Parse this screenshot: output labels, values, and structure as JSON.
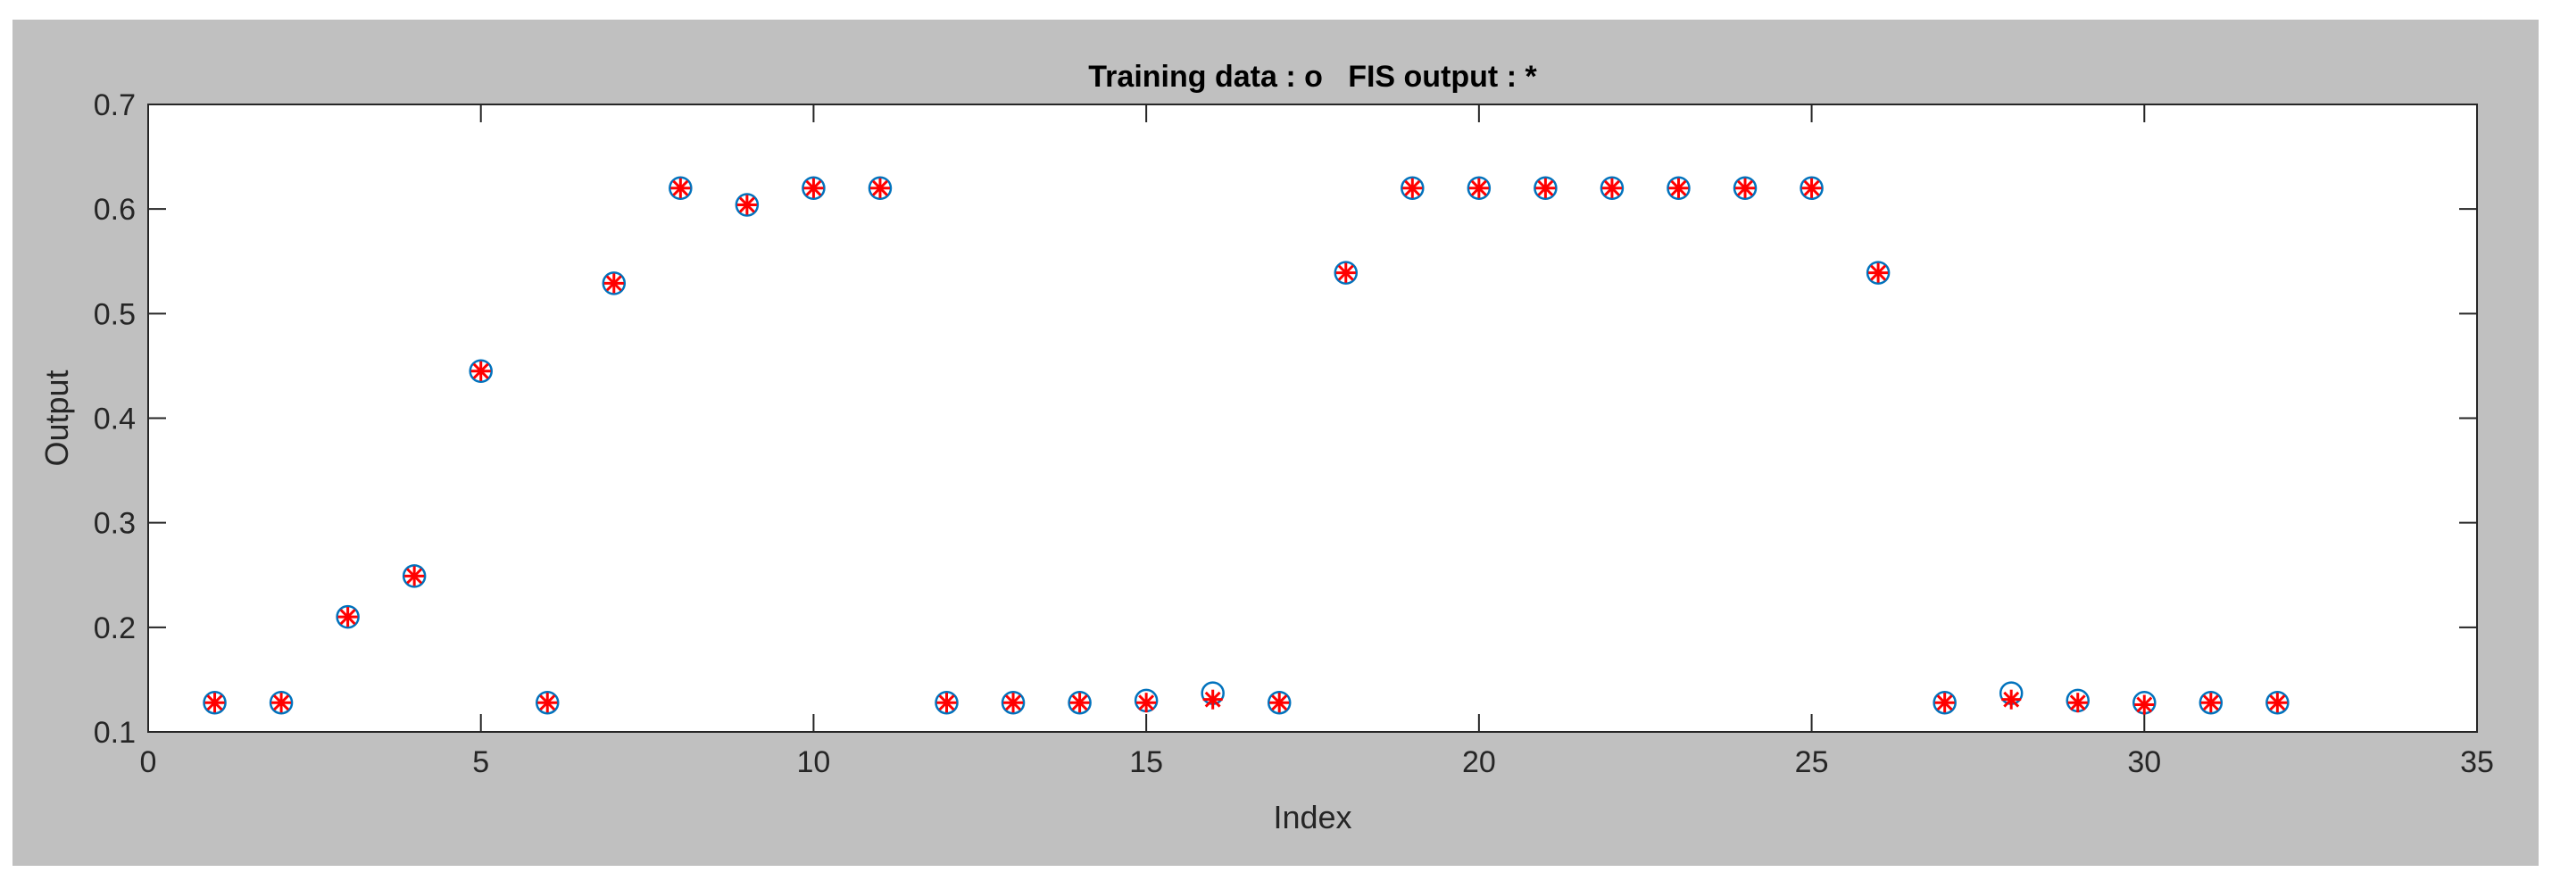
{
  "chart_data": {
    "type": "scatter",
    "title": "Training data : o   FIS output : *",
    "xlabel": "Index",
    "ylabel": "Output",
    "xlim": [
      0,
      35
    ],
    "ylim": [
      0.1,
      0.7
    ],
    "xticks": [
      0,
      5,
      10,
      15,
      20,
      25,
      30,
      35
    ],
    "yticks": [
      0.1,
      0.2,
      0.3,
      0.4,
      0.5,
      0.6,
      0.7
    ],
    "xtick_labels": [
      "0",
      "5",
      "10",
      "15",
      "20",
      "25",
      "30",
      "35"
    ],
    "ytick_labels": [
      "0.1",
      "0.2",
      "0.3",
      "0.4",
      "0.5",
      "0.6",
      "0.7"
    ],
    "grid": false,
    "series": [
      {
        "marker": "o",
        "color": "#0072bd",
        "x": [
          1,
          2,
          3,
          4,
          5,
          6,
          7,
          8,
          9,
          10,
          11,
          12,
          13,
          14,
          15,
          16,
          17,
          18,
          19,
          20,
          21,
          22,
          23,
          24,
          25,
          26,
          27,
          28,
          29,
          30,
          31,
          32
        ],
        "y": [
          0.128,
          0.128,
          0.21,
          0.249,
          0.445,
          0.128,
          0.529,
          0.62,
          0.604,
          0.62,
          0.62,
          0.128,
          0.128,
          0.128,
          0.13,
          0.137,
          0.128,
          0.539,
          0.62,
          0.62,
          0.62,
          0.62,
          0.62,
          0.62,
          0.62,
          0.539,
          0.128,
          0.137,
          0.13,
          0.128,
          0.128,
          0.128
        ]
      },
      {
        "marker": "*",
        "color": "#ff0000",
        "x": [
          1,
          2,
          3,
          4,
          5,
          6,
          7,
          8,
          9,
          10,
          11,
          12,
          13,
          14,
          15,
          16,
          17,
          18,
          19,
          20,
          21,
          22,
          23,
          24,
          25,
          26,
          27,
          28,
          29,
          30,
          31,
          32
        ],
        "y": [
          0.128,
          0.128,
          0.21,
          0.249,
          0.445,
          0.128,
          0.529,
          0.62,
          0.604,
          0.62,
          0.62,
          0.128,
          0.128,
          0.128,
          0.128,
          0.131,
          0.128,
          0.539,
          0.62,
          0.62,
          0.62,
          0.62,
          0.62,
          0.62,
          0.62,
          0.539,
          0.128,
          0.131,
          0.128,
          0.126,
          0.128,
          0.128
        ]
      }
    ]
  }
}
